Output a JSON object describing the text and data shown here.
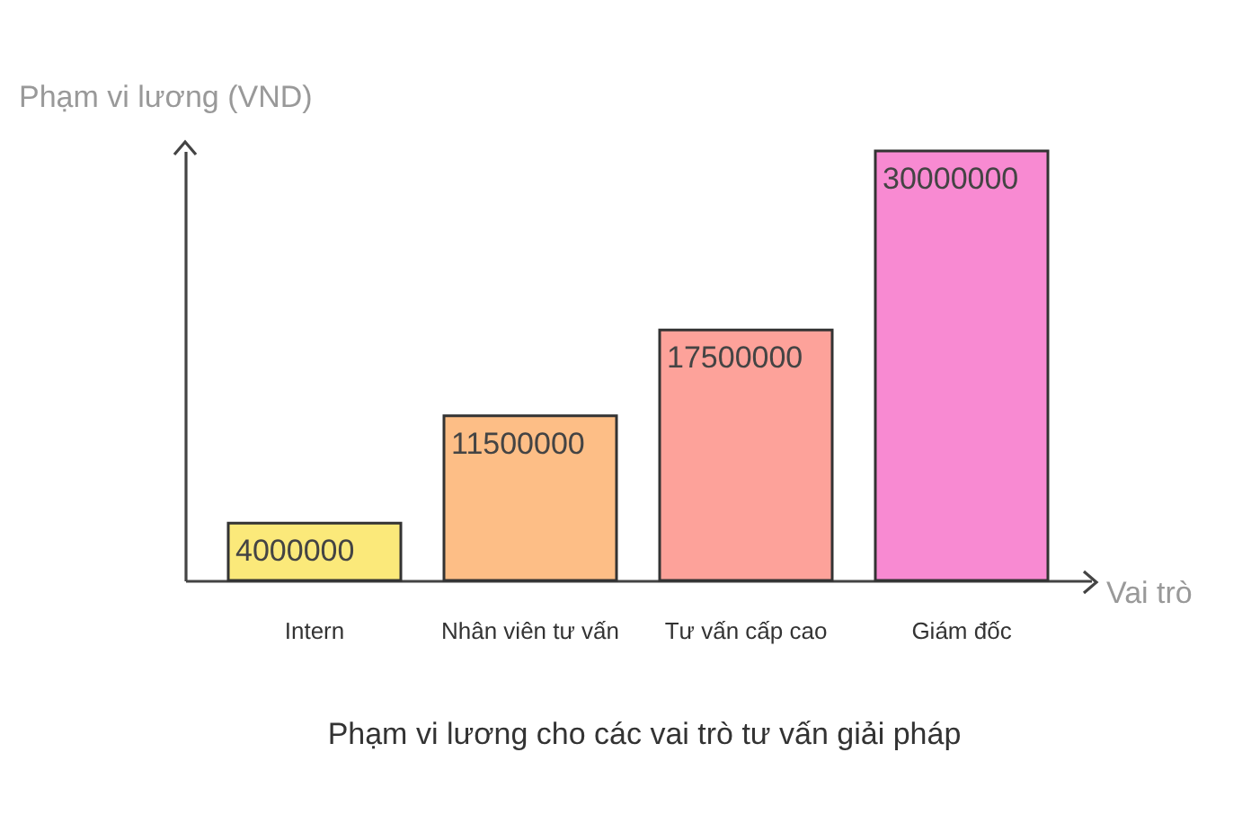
{
  "chart_data": {
    "type": "bar",
    "title": "Phạm vi lương cho các vai trò tư vấn giải pháp",
    "xlabel": "Vai trò",
    "ylabel": "Phạm vi lương (VND)",
    "categories": [
      "Intern",
      "Nhân viên tư vấn",
      "Tư vấn cấp cao",
      "Giám đốc"
    ],
    "values": [
      4000000,
      11500000,
      17500000,
      30000000
    ],
    "colors": [
      "#fbe97a",
      "#fdbe86",
      "#fda29a",
      "#f88ad2"
    ],
    "ylim": [
      0,
      30000000
    ],
    "data_labels": true,
    "grid": false,
    "tick_labels": "x"
  }
}
